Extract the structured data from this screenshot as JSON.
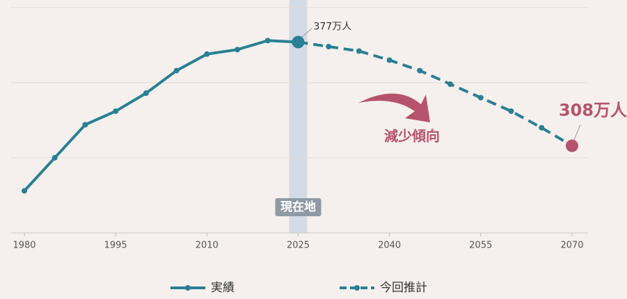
{
  "chart_data": {
    "type": "line",
    "x": [
      1980,
      1985,
      1990,
      1995,
      2000,
      2005,
      2010,
      2015,
      2020,
      2025,
      2030,
      2035,
      2040,
      2045,
      2050,
      2055,
      2060,
      2065,
      2070
    ],
    "series": [
      {
        "name": "実績",
        "color": "#2a7f93",
        "style": "solid",
        "values": [
          278,
          300,
          322,
          331,
          343,
          358,
          369,
          372,
          378,
          377,
          null,
          null,
          null,
          null,
          null,
          null,
          null,
          null,
          null
        ]
      },
      {
        "name": "今回推計",
        "color": "#2a7f93",
        "style": "dashed",
        "values": [
          null,
          null,
          null,
          null,
          null,
          null,
          null,
          null,
          null,
          377,
          374,
          371,
          365,
          358,
          349,
          340,
          331,
          320,
          308
        ],
        "value_labels": [
          null,
          null,
          null,
          null,
          null,
          null,
          null,
          null,
          null,
          "377万人",
          null,
          null,
          null,
          null,
          null,
          null,
          null,
          null,
          "308万人"
        ]
      }
    ],
    "xlim": [
      1980,
      2070
    ],
    "xticks": [
      1980,
      1995,
      2010,
      2025,
      2040,
      2055,
      2070
    ],
    "ylim": [
      250,
      405
    ],
    "yticks": [
      250,
      300,
      350,
      400
    ],
    "grid": true,
    "current_marker": {
      "x": 2025,
      "label": "現在地"
    },
    "trend_label": "減少傾向",
    "highlight_color": "#b5546c"
  }
}
